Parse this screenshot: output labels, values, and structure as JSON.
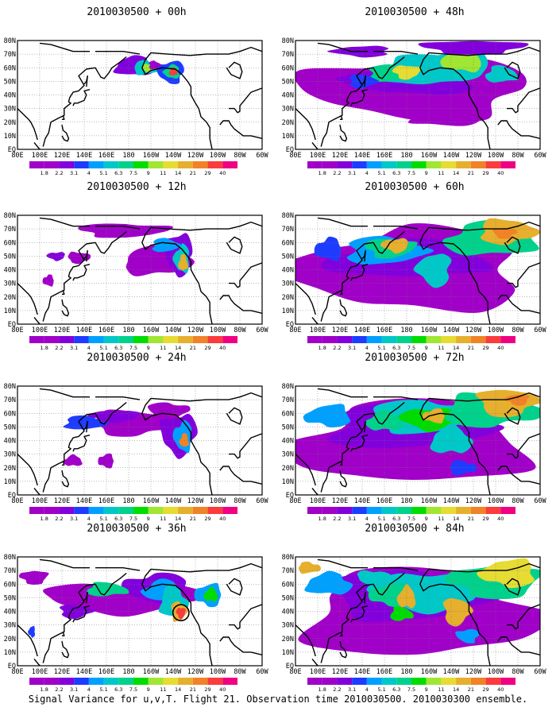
{
  "panels": [
    {
      "title": "2010030500 + 00h"
    },
    {
      "title": "2010030500 + 12h"
    },
    {
      "title": "2010030500 + 24h"
    },
    {
      "title": "2010030500 + 36h"
    },
    {
      "title": "2010030500 + 48h"
    },
    {
      "title": "2010030500 + 60h"
    },
    {
      "title": "2010030500 + 72h"
    },
    {
      "title": "2010030500 + 84h"
    }
  ],
  "lat_labels": [
    "80N",
    "70N",
    "60N",
    "50N",
    "40N",
    "30N",
    "20N",
    "10N",
    "EQ"
  ],
  "lon_labels": [
    "80E",
    "100E",
    "120E",
    "140E",
    "160E",
    "180",
    "160W",
    "140W",
    "120W",
    "100W",
    "80W",
    "60W"
  ],
  "colorbar": {
    "labels": [
      "1.8",
      "2.2",
      "3.1",
      "4",
      "5.1",
      "6.3",
      "7.5",
      "9",
      "11",
      "14",
      "21",
      "29",
      "40"
    ],
    "colors": [
      "#a000c8",
      "#8200dc",
      "#1e3cff",
      "#00a0ff",
      "#00c8c8",
      "#00d28c",
      "#00dc00",
      "#a0e632",
      "#e6dc32",
      "#e6af2d",
      "#f08228",
      "#fa3c3c",
      "#f00082"
    ]
  },
  "footer": "Signal Variance for u,v,T. Flight 21. Observation time 2010030500. 2010030300 ensemble."
}
